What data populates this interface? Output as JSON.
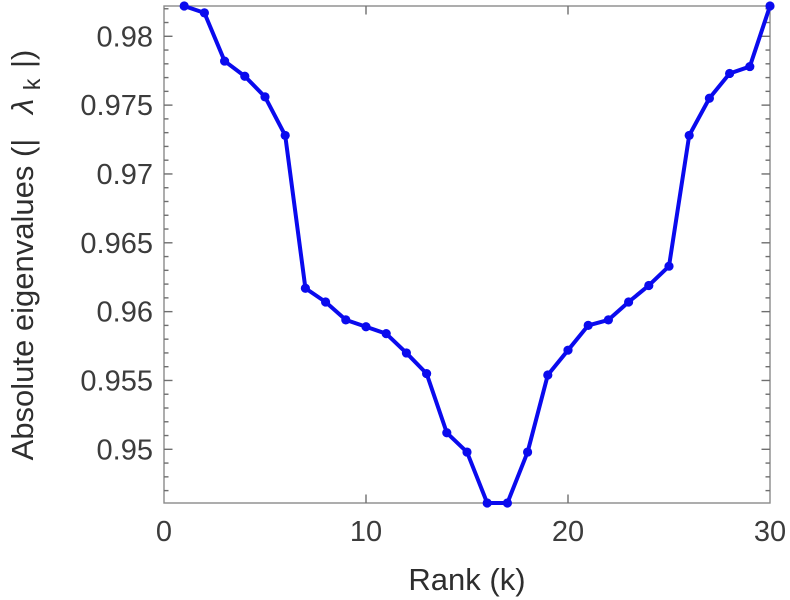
{
  "figure": {
    "background": "#ffffff"
  },
  "chart_data": {
    "type": "line",
    "title": "",
    "xlabel": "Rank (k)",
    "ylabel": "Absolute eigenvalues (| λ_k|)",
    "ylabel_parts": {
      "prefix": "Absolute eigenvalues (|",
      "symbol": "λ",
      "subscript": "k",
      "suffix": "|)"
    },
    "x": [
      1,
      2,
      3,
      4,
      5,
      6,
      7,
      8,
      9,
      10,
      11,
      12,
      13,
      14,
      15,
      16,
      17,
      18,
      19,
      20,
      21,
      22,
      23,
      24,
      25,
      26,
      27,
      28,
      29,
      30
    ],
    "series": [
      {
        "name": "absolute-eigenvalues",
        "color": "#0a0aee",
        "values": [
          0.9822,
          0.9817,
          0.9782,
          0.9771,
          0.9756,
          0.9728,
          0.9617,
          0.9607,
          0.9594,
          0.9589,
          0.9584,
          0.957,
          0.9555,
          0.9512,
          0.9498,
          0.9461,
          0.9461,
          0.9498,
          0.9554,
          0.9572,
          0.959,
          0.9594,
          0.9607,
          0.9619,
          0.9633,
          0.9728,
          0.9755,
          0.9773,
          0.9778,
          0.9822
        ]
      }
    ],
    "xlim": [
      0,
      30
    ],
    "ylim": [
      0.9461,
      0.9822
    ],
    "x_ticks": [
      0,
      10,
      20,
      30
    ],
    "x_tick_labels": [
      "0",
      "10",
      "20",
      "30"
    ],
    "y_ticks": [
      0.95,
      0.955,
      0.96,
      0.965,
      0.97,
      0.975,
      0.98
    ],
    "y_tick_labels": [
      "0.95",
      "0.955",
      "0.96",
      "0.965",
      "0.97",
      "0.975",
      "0.98"
    ],
    "y_minor_step": 0.001,
    "grid": false,
    "legend": null,
    "marker": "dot",
    "line_width": 4,
    "marker_radius": 4.6,
    "axis_color": "#8a8a8a",
    "tick_color": "#6f6f6f",
    "tick_label_color": "#3c3c3c",
    "label_color": "#2e2e2e"
  }
}
